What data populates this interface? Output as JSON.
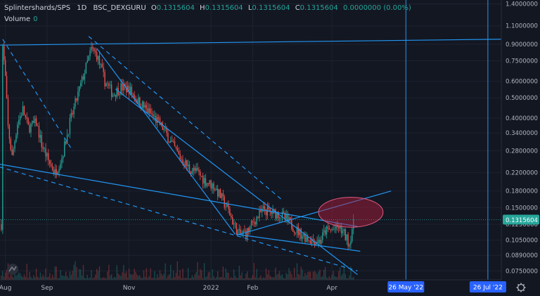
{
  "legend": {
    "symbol": "Splintershards/SPS",
    "interval": "1D",
    "exchange": "BSC_DEXGURU",
    "o_label": "O",
    "o_value": "0.1315604",
    "h_label": "H",
    "h_value": "0.1315604",
    "l_label": "L",
    "l_value": "0.1315604",
    "c_label": "C",
    "c_value": "0.1315604",
    "change": "0.0000000 (0.00%)"
  },
  "volume": {
    "label": "Volume",
    "value": "0"
  },
  "colors": {
    "background": "#131722",
    "up": "#26a69a",
    "down": "#ef5350",
    "trendline": "#2196f3",
    "axis_text": "#b2b5be",
    "price_label_bg": "#2962ff",
    "highlight_fill": "#b71c3c"
  },
  "icons": [
    "tradingview-logo-icon",
    "gear-icon"
  ],
  "chart_data": {
    "type": "candlestick",
    "y_scale": "log",
    "ylim": [
      0.068,
      1.46
    ],
    "x_range": [
      "2021-07-28",
      "2022-08-05"
    ],
    "y_ticks": [
      "1.4000000",
      "1.1000000",
      "0.9000000",
      "0.7500000",
      "0.6000000",
      "0.5000000",
      "0.4000000",
      "0.3400000",
      "0.2800000",
      "0.2200000",
      "0.1800000",
      "0.1500000",
      "0.1250000",
      "0.1050000",
      "0.0890000",
      "0.0750000"
    ],
    "x_ticks": [
      {
        "label": "Aug",
        "date": "2021-08-01"
      },
      {
        "label": "Sep",
        "date": "2021-09-01"
      },
      {
        "label": "Nov",
        "date": "2021-11-01"
      },
      {
        "label": "2022",
        "date": "2022-01-01"
      },
      {
        "label": "Feb",
        "date": "2022-02-01"
      },
      {
        "label": "Apr",
        "date": "2022-04-01"
      }
    ],
    "last_price": "0.1315604",
    "price_path": [
      [
        "2021-07-29",
        0.125
      ],
      [
        "2021-07-30",
        0.88
      ],
      [
        "2021-08-01",
        0.62
      ],
      [
        "2021-08-03",
        0.36
      ],
      [
        "2021-08-06",
        0.26
      ],
      [
        "2021-08-10",
        0.38
      ],
      [
        "2021-08-14",
        0.44
      ],
      [
        "2021-08-18",
        0.36
      ],
      [
        "2021-08-24",
        0.38
      ],
      [
        "2021-08-28",
        0.3
      ],
      [
        "2021-09-02",
        0.25
      ],
      [
        "2021-09-07",
        0.22
      ],
      [
        "2021-09-12",
        0.26
      ],
      [
        "2021-09-18",
        0.38
      ],
      [
        "2021-09-24",
        0.52
      ],
      [
        "2021-09-30",
        0.7
      ],
      [
        "2021-10-04",
        0.85
      ],
      [
        "2021-10-08",
        0.8
      ],
      [
        "2021-10-14",
        0.6
      ],
      [
        "2021-10-20",
        0.52
      ],
      [
        "2021-10-26",
        0.56
      ],
      [
        "2021-11-01",
        0.55
      ],
      [
        "2021-11-08",
        0.48
      ],
      [
        "2021-11-14",
        0.44
      ],
      [
        "2021-11-20",
        0.4
      ],
      [
        "2021-11-26",
        0.36
      ],
      [
        "2021-12-03",
        0.3
      ],
      [
        "2021-12-09",
        0.26
      ],
      [
        "2021-12-16",
        0.23
      ],
      [
        "2021-12-22",
        0.22
      ],
      [
        "2021-12-28",
        0.2
      ],
      [
        "2022-01-03",
        0.19
      ],
      [
        "2022-01-08",
        0.17
      ],
      [
        "2022-01-14",
        0.145
      ],
      [
        "2022-01-18",
        0.125
      ],
      [
        "2022-01-22",
        0.112
      ],
      [
        "2022-01-28",
        0.115
      ],
      [
        "2022-02-03",
        0.132
      ],
      [
        "2022-02-09",
        0.146
      ],
      [
        "2022-02-15",
        0.142
      ],
      [
        "2022-02-21",
        0.14
      ],
      [
        "2022-02-27",
        0.13
      ],
      [
        "2022-03-05",
        0.118
      ],
      [
        "2022-03-11",
        0.11
      ],
      [
        "2022-03-17",
        0.105
      ],
      [
        "2022-03-23",
        0.104
      ],
      [
        "2022-03-27",
        0.116
      ],
      [
        "2022-04-02",
        0.118
      ],
      [
        "2022-04-06",
        0.121
      ],
      [
        "2022-04-10",
        0.112
      ],
      [
        "2022-04-14",
        0.101
      ],
      [
        "2022-04-17",
        0.1315604
      ]
    ],
    "trendlines": [
      {
        "style": "solid",
        "from": [
          "2021-07-25",
          0.89
        ],
        "to": [
          "2022-08-05",
          0.95
        ]
      },
      {
        "style": "dashed",
        "from": [
          "2021-07-30",
          0.95
        ],
        "to": [
          "2021-09-20",
          0.28
        ]
      },
      {
        "style": "dashed",
        "from": [
          "2021-10-02",
          0.98
        ],
        "to": [
          "2022-02-22",
          0.165
        ]
      },
      {
        "style": "solid",
        "from": [
          "2021-10-08",
          0.86
        ],
        "to": [
          "2022-01-19",
          0.112
        ]
      },
      {
        "style": "solid",
        "from": [
          "2021-10-22",
          0.55
        ],
        "to": [
          "2022-04-20",
          0.072
        ]
      },
      {
        "style": "solid",
        "from": [
          "2021-07-22",
          0.245
        ],
        "to": [
          "2022-04-20",
          0.122
        ]
      },
      {
        "style": "dashed",
        "from": [
          "2021-07-22",
          0.24
        ],
        "to": [
          "2022-04-20",
          0.075
        ]
      },
      {
        "style": "solid",
        "from": [
          "2022-01-20",
          0.111
        ],
        "to": [
          "2022-05-15",
          0.18
        ]
      },
      {
        "style": "solid",
        "from": [
          "2022-01-20",
          0.112
        ],
        "to": [
          "2022-04-22",
          0.093
        ]
      }
    ],
    "vertical_lines": [
      {
        "date": "2022-05-26",
        "label": "26 May '22"
      },
      {
        "date": "2022-07-26",
        "label": "26 Jul '22"
      }
    ],
    "ellipse": {
      "center": [
        "2022-04-15",
        0.143
      ],
      "date_radius_days": 24,
      "price_top": 0.168,
      "price_bottom": 0.121
    }
  }
}
